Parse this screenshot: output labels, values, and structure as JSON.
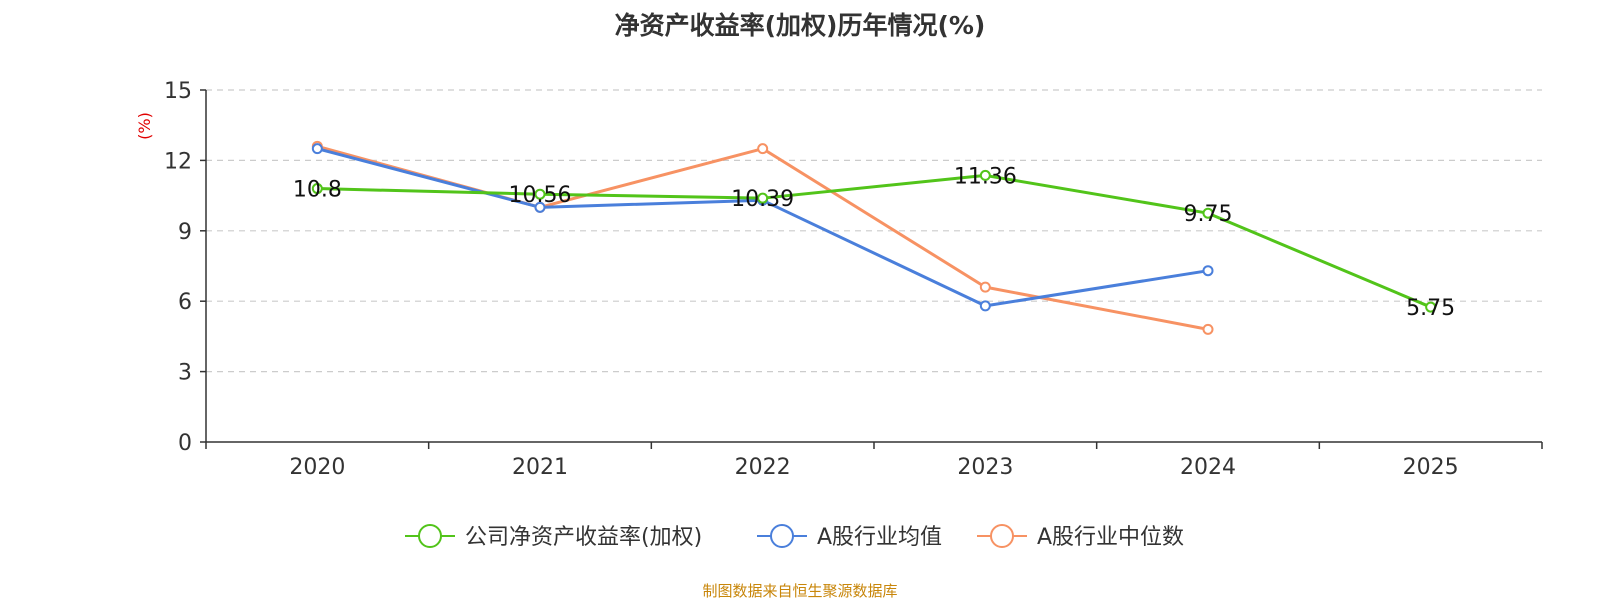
{
  "chart_data": {
    "type": "line",
    "title": "净资产收益率(加权)历年情况(%)",
    "ylabel": "(%)",
    "xlabel": "",
    "categories": [
      "2020",
      "2021",
      "2022",
      "2023",
      "2024",
      "2025"
    ],
    "ylim": [
      0,
      15
    ],
    "yticks": [
      0,
      3,
      6,
      9,
      12,
      15
    ],
    "grid": true,
    "legend_position": "bottom",
    "series": [
      {
        "name": "公司净资产收益率(加权)",
        "color": "#52c41a",
        "values": [
          10.8,
          10.56,
          10.39,
          11.36,
          9.75,
          5.75
        ],
        "labels": [
          "10.8",
          "10.56",
          "10.39",
          "11.36",
          "9.75",
          "5.75"
        ],
        "show_labels": true
      },
      {
        "name": "A股行业均值",
        "color": "#4a7fdb",
        "values": [
          12.5,
          10.0,
          10.3,
          5.8,
          7.3,
          null
        ],
        "show_labels": false
      },
      {
        "name": "A股行业中位数",
        "color": "#f79263",
        "values": [
          12.6,
          10.0,
          12.5,
          6.6,
          4.8,
          null
        ],
        "show_labels": false
      }
    ]
  },
  "source_note": "制图数据来自恒生聚源数据库",
  "colors": {
    "axis": "#333333",
    "grid": "#cccccc",
    "ylabel": "#e00000",
    "source": "#c8860a"
  }
}
